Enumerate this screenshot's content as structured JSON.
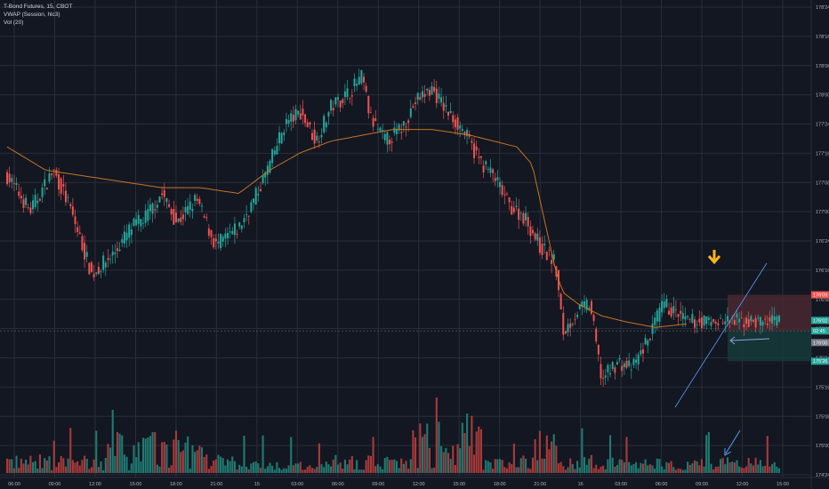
{
  "legend": {
    "symbol": "T-Bond Futures, 15, CBOT",
    "vwap": "VWAP (Session, hlc3)",
    "vol": "Vol (20)"
  },
  "colors": {
    "background": "#131722",
    "grid": "#2a2e39",
    "up": "#26a69a",
    "down": "#ef5350",
    "up_volume": "#1f7a72",
    "down_volume": "#a83a3a",
    "vwap": "#c77421",
    "arrow_marker": "#f7b51e",
    "annotation": "#5b9cf6",
    "red_zone": "#4a2830",
    "green_zone": "#163a39"
  },
  "chart_data": {
    "type": "candlestick",
    "title": "T-Bond Futures, 15, CBOT",
    "x_ticks": [
      "06:00",
      "09:00",
      "12:00",
      "15:00",
      "18:00",
      "21:00",
      "15",
      "03:00",
      "06:00",
      "09:00",
      "12:00",
      "15:00",
      "18:00",
      "21:00",
      "16",
      "03:00",
      "06:00",
      "09:00",
      "12:00",
      "15:00"
    ],
    "y_ticks": [
      "178'24",
      "178'16",
      "178'08",
      "178'00",
      "177'24",
      "177'16",
      "177'08",
      "177'00",
      "176'24",
      "176'16",
      "176'08",
      "176'00",
      "175'24",
      "175'16",
      "175'08",
      "175'00",
      "174'24"
    ],
    "price_tags": [
      {
        "label": "176'09",
        "value": 176.28,
        "color": "#ef5350"
      },
      {
        "label": "176'02",
        "value": 176.06,
        "color": "#26a69a"
      },
      {
        "label": "02:45",
        "value": 175.97,
        "color": "#26a69a"
      },
      {
        "label": "176'00",
        "value": 175.87,
        "color": "#787b86"
      },
      {
        "label": "175'26",
        "value": 175.71,
        "color": "#26a69a"
      }
    ],
    "ohlc_anchors": [
      {
        "t": 0,
        "p": 177.3
      },
      {
        "t": 0.03,
        "p": 177.0
      },
      {
        "t": 0.06,
        "p": 177.35
      },
      {
        "t": 0.08,
        "p": 177.05
      },
      {
        "t": 0.11,
        "p": 176.45
      },
      {
        "t": 0.14,
        "p": 176.65
      },
      {
        "t": 0.16,
        "p": 176.85
      },
      {
        "t": 0.18,
        "p": 176.95
      },
      {
        "t": 0.2,
        "p": 177.15
      },
      {
        "t": 0.22,
        "p": 176.9
      },
      {
        "t": 0.245,
        "p": 177.1
      },
      {
        "t": 0.27,
        "p": 176.7
      },
      {
        "t": 0.3,
        "p": 176.85
      },
      {
        "t": 0.32,
        "p": 177.1
      },
      {
        "t": 0.34,
        "p": 177.4
      },
      {
        "t": 0.36,
        "p": 177.75
      },
      {
        "t": 0.38,
        "p": 177.85
      },
      {
        "t": 0.4,
        "p": 177.6
      },
      {
        "t": 0.42,
        "p": 177.9
      },
      {
        "t": 0.44,
        "p": 178.0
      },
      {
        "t": 0.46,
        "p": 178.15
      },
      {
        "t": 0.47,
        "p": 177.8
      },
      {
        "t": 0.49,
        "p": 177.6
      },
      {
        "t": 0.51,
        "p": 177.7
      },
      {
        "t": 0.53,
        "p": 177.95
      },
      {
        "t": 0.55,
        "p": 178.05
      },
      {
        "t": 0.57,
        "p": 177.85
      },
      {
        "t": 0.59,
        "p": 177.7
      },
      {
        "t": 0.61,
        "p": 177.45
      },
      {
        "t": 0.63,
        "p": 177.3
      },
      {
        "t": 0.65,
        "p": 177.05
      },
      {
        "t": 0.67,
        "p": 176.95
      },
      {
        "t": 0.69,
        "p": 176.7
      },
      {
        "t": 0.71,
        "p": 176.55
      },
      {
        "t": 0.72,
        "p": 175.95
      },
      {
        "t": 0.74,
        "p": 176.15
      },
      {
        "t": 0.755,
        "p": 176.2
      },
      {
        "t": 0.77,
        "p": 175.55
      },
      {
        "t": 0.79,
        "p": 175.7
      },
      {
        "t": 0.81,
        "p": 175.65
      },
      {
        "t": 0.83,
        "p": 175.9
      },
      {
        "t": 0.85,
        "p": 176.2
      },
      {
        "t": 0.87,
        "p": 176.1
      },
      {
        "t": 0.88,
        "p": 176.05
      }
    ],
    "vwap_anchors": [
      {
        "t": 0,
        "p": 177.55
      },
      {
        "t": 0.05,
        "p": 177.35
      },
      {
        "t": 0.1,
        "p": 177.3
      },
      {
        "t": 0.15,
        "p": 177.25
      },
      {
        "t": 0.2,
        "p": 177.2
      },
      {
        "t": 0.25,
        "p": 177.2
      },
      {
        "t": 0.3,
        "p": 177.15
      },
      {
        "t": 0.34,
        "p": 177.35
      },
      {
        "t": 0.38,
        "p": 177.5
      },
      {
        "t": 0.42,
        "p": 177.6
      },
      {
        "t": 0.46,
        "p": 177.65
      },
      {
        "t": 0.5,
        "p": 177.7
      },
      {
        "t": 0.55,
        "p": 177.7
      },
      {
        "t": 0.6,
        "p": 177.65
      },
      {
        "t": 0.66,
        "p": 177.55
      },
      {
        "t": 0.68,
        "p": 177.4
      },
      {
        "t": 0.69,
        "p": 177.1
      },
      {
        "t": 0.7,
        "p": 176.8
      },
      {
        "t": 0.71,
        "p": 176.5
      },
      {
        "t": 0.72,
        "p": 176.3
      },
      {
        "t": 0.74,
        "p": 176.2
      },
      {
        "t": 0.77,
        "p": 176.1
      },
      {
        "t": 0.8,
        "p": 176.05
      },
      {
        "t": 0.84,
        "p": 176.0
      },
      {
        "t": 0.88,
        "p": 176.03
      }
    ],
    "zones": {
      "red": {
        "top": 176.28,
        "bottom": 175.97
      },
      "green": {
        "top": 175.97,
        "bottom": 175.71
      }
    }
  }
}
